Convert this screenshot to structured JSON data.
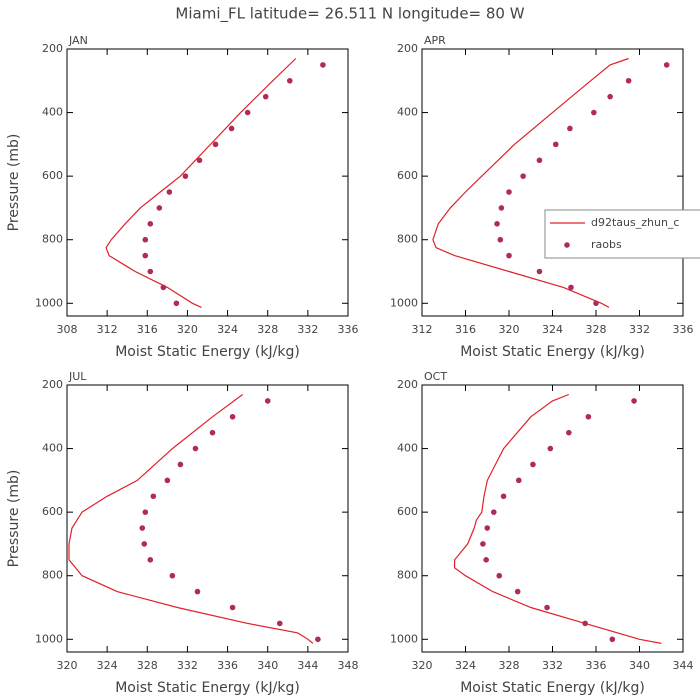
{
  "title": "Miami_FL   latitude= 26.511 N longitude= 80 W",
  "chart_data": [
    {
      "type": "line",
      "title": "JAN",
      "xlabel": "Moist Static Energy (kJ/kg)",
      "ylabel": "Pressure (mb)",
      "xlim": [
        308,
        336
      ],
      "xticks": [
        308,
        312,
        316,
        320,
        324,
        328,
        332,
        336
      ],
      "ylim": [
        200,
        1040
      ],
      "yticks": [
        200,
        400,
        600,
        800,
        1000
      ],
      "y_inverted": true,
      "series": [
        {
          "mode": "line",
          "color": "#e0202a",
          "x": [
            330.8,
            328.5,
            325.3,
            322.3,
            319.3,
            317.3,
            315.3,
            313.8,
            312.4,
            311.9,
            312.2,
            314.8,
            318.0,
            320.5,
            321.4
          ],
          "y": [
            230,
            300,
            400,
            500,
            600,
            650,
            700,
            750,
            800,
            825,
            850,
            900,
            950,
            1000,
            1013
          ]
        },
        {
          "mode": "markers",
          "color": "#b02a5a",
          "x": [
            333.5,
            330.2,
            327.8,
            326.0,
            324.4,
            322.8,
            321.2,
            319.8,
            318.2,
            317.2,
            316.3,
            315.8,
            315.8,
            316.3,
            317.6,
            318.9
          ],
          "y": [
            250,
            300,
            350,
            400,
            450,
            500,
            550,
            600,
            650,
            700,
            750,
            800,
            850,
            900,
            950,
            1000
          ]
        }
      ]
    },
    {
      "type": "line",
      "title": "APR",
      "xlabel": "Moist Static Energy (kJ/kg)",
      "xlim": [
        312,
        336
      ],
      "xticks": [
        312,
        316,
        320,
        324,
        328,
        332,
        336
      ],
      "ylim": [
        200,
        1040
      ],
      "yticks": [
        200,
        400,
        600,
        800,
        1000
      ],
      "y_inverted": true,
      "legend": "right",
      "series": [
        {
          "name": "d92taus_zhun_c",
          "mode": "line",
          "color": "#e0202a",
          "x": [
            331.0,
            329.3,
            327.5,
            324.0,
            320.5,
            317.5,
            316.0,
            314.6,
            313.5,
            313.0,
            313.3,
            315.0,
            320.0,
            325.0,
            328.5,
            329.2
          ],
          "y": [
            230,
            250,
            300,
            400,
            500,
            600,
            650,
            700,
            750,
            800,
            825,
            850,
            900,
            950,
            1000,
            1013
          ]
        },
        {
          "name": "raobs",
          "mode": "markers",
          "color": "#b02a5a",
          "x": [
            334.5,
            331.0,
            329.3,
            327.8,
            325.6,
            324.3,
            322.8,
            321.3,
            320.0,
            319.3,
            318.9,
            319.2,
            320.0,
            322.8,
            325.7,
            328.0
          ],
          "y": [
            250,
            300,
            350,
            400,
            450,
            500,
            550,
            600,
            650,
            700,
            750,
            800,
            850,
            900,
            950,
            1000
          ]
        }
      ]
    },
    {
      "type": "line",
      "title": "JUL",
      "xlabel": "Moist Static Energy (kJ/kg)",
      "ylabel": "Pressure (mb)",
      "xlim": [
        320,
        348
      ],
      "xticks": [
        320,
        324,
        328,
        332,
        336,
        340,
        344,
        348
      ],
      "ylim": [
        200,
        1040
      ],
      "yticks": [
        200,
        400,
        600,
        800,
        1000
      ],
      "y_inverted": true,
      "series": [
        {
          "mode": "line",
          "color": "#e0202a",
          "x": [
            337.5,
            334.5,
            330.5,
            327.0,
            324.0,
            321.5,
            321.0,
            320.5,
            320.2,
            320.2,
            321.5,
            325.0,
            331.0,
            338.0,
            343.0,
            344.0,
            344.5
          ],
          "y": [
            230,
            300,
            400,
            500,
            550,
            600,
            625,
            650,
            700,
            750,
            800,
            850,
            900,
            950,
            980,
            1000,
            1013
          ]
        },
        {
          "mode": "markers",
          "color": "#b02a5a",
          "x": [
            340.0,
            336.5,
            334.5,
            332.8,
            331.3,
            330.0,
            328.6,
            327.8,
            327.5,
            327.7,
            328.3,
            330.5,
            333.0,
            336.5,
            341.2,
            345.0
          ],
          "y": [
            250,
            300,
            350,
            400,
            450,
            500,
            550,
            600,
            650,
            700,
            750,
            800,
            850,
            900,
            950,
            1000
          ]
        }
      ]
    },
    {
      "type": "line",
      "title": "OCT",
      "xlabel": "Moist Static Energy (kJ/kg)",
      "xlim": [
        320,
        344
      ],
      "xticks": [
        320,
        324,
        328,
        332,
        336,
        340,
        344
      ],
      "ylim": [
        200,
        1040
      ],
      "yticks": [
        200,
        400,
        600,
        800,
        1000
      ],
      "y_inverted": true,
      "series": [
        {
          "mode": "line",
          "color": "#e0202a",
          "x": [
            333.5,
            332.0,
            330.0,
            327.5,
            326.0,
            325.7,
            325.5,
            325.0,
            324.8,
            324.2,
            323.0,
            323.0,
            324.0,
            326.5,
            330.0,
            335.0,
            340.0,
            342.0
          ],
          "y": [
            230,
            250,
            300,
            400,
            500,
            550,
            600,
            625,
            650,
            700,
            750,
            775,
            800,
            850,
            900,
            950,
            1000,
            1013
          ]
        },
        {
          "mode": "markers",
          "color": "#b02a5a",
          "x": [
            339.5,
            335.3,
            333.5,
            331.8,
            330.2,
            328.9,
            327.5,
            326.6,
            326.0,
            325.6,
            325.9,
            327.1,
            328.8,
            331.5,
            335.0,
            337.5
          ],
          "y": [
            250,
            300,
            350,
            400,
            450,
            500,
            550,
            600,
            650,
            700,
            750,
            800,
            850,
            900,
            950,
            1000
          ]
        }
      ]
    }
  ]
}
